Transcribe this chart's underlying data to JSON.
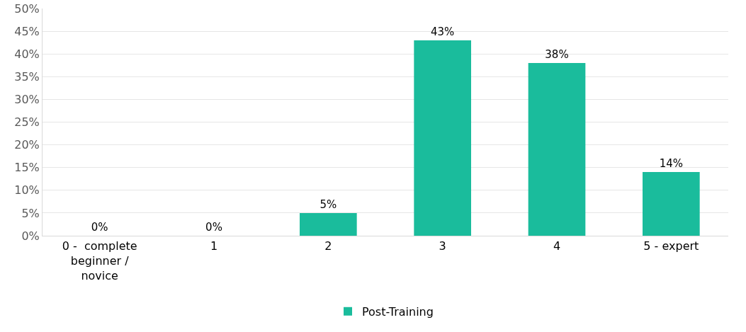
{
  "chart_data": {
    "type": "bar",
    "categories": [
      "0 -  complete beginner / novice",
      "1",
      "2",
      "3",
      "4",
      "5 - expert"
    ],
    "series": [
      {
        "name": "Post-Training",
        "color": "#1abc9c",
        "values": [
          0,
          0,
          5,
          43,
          38,
          14
        ],
        "value_labels": [
          "0%",
          "0%",
          "5%",
          "43%",
          "38%",
          "14%"
        ]
      }
    ],
    "ylim": [
      0,
      50
    ],
    "yticks": [
      {
        "value": 0,
        "label": "0%"
      },
      {
        "value": 5,
        "label": "5%"
      },
      {
        "value": 10,
        "label": "10%"
      },
      {
        "value": 15,
        "label": "15%"
      },
      {
        "value": 20,
        "label": "20%"
      },
      {
        "value": 25,
        "label": "25%"
      },
      {
        "value": 30,
        "label": "30%"
      },
      {
        "value": 35,
        "label": "35%"
      },
      {
        "value": 40,
        "label": "40%"
      },
      {
        "value": 45,
        "label": "45%"
      },
      {
        "value": 50,
        "label": "50%"
      }
    ],
    "grid": "y",
    "legend": "bottom"
  }
}
